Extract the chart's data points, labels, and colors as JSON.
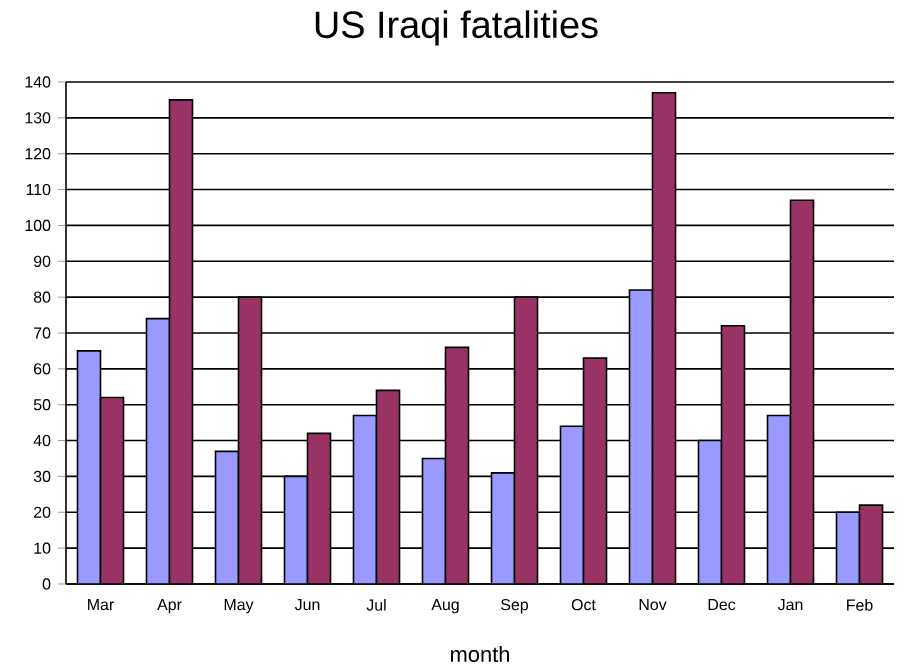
{
  "chart_data": {
    "type": "bar",
    "title": "US Iraqi fatalities",
    "xlabel": "month",
    "categories": [
      "Mar",
      "Apr",
      "May",
      "Jun",
      "Jul",
      "Aug",
      "Sep",
      "Oct",
      "Nov",
      "Dec",
      "Jan",
      "Feb"
    ],
    "series": [
      {
        "color": "#9999ff",
        "values": [
          65,
          74,
          37,
          30,
          47,
          35,
          31,
          44,
          82,
          40,
          47,
          20
        ]
      },
      {
        "color": "#993366",
        "values": [
          52,
          135,
          80,
          42,
          54,
          66,
          80,
          63,
          137,
          72,
          107,
          22
        ]
      }
    ],
    "ylim": [
      0,
      140
    ],
    "yticks": [
      0,
      10,
      20,
      30,
      40,
      50,
      60,
      70,
      80,
      90,
      100,
      110,
      120,
      130,
      140
    ],
    "grid": "y"
  }
}
